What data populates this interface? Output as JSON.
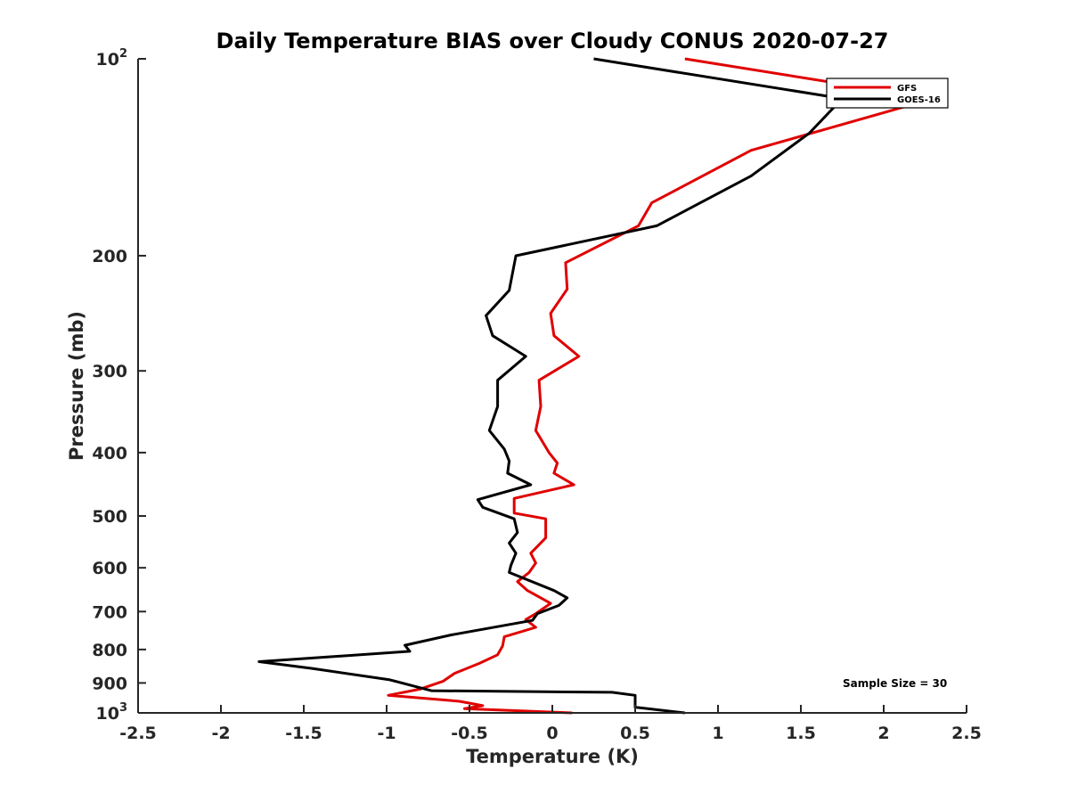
{
  "chart_data": {
    "type": "line",
    "title": "Daily Temperature BIAS over Cloudy CONUS 2020-07-27",
    "xlabel": "Temperature (K)",
    "ylabel": "Pressure (mb)",
    "xlim": [
      -2.5,
      2.5
    ],
    "ylim": [
      100,
      1000
    ],
    "y_scale": "log",
    "y_reversed": true,
    "grid": false,
    "legend_position": "top-right",
    "x_ticks": [
      "-2.5",
      "-2",
      "-1.5",
      "-1",
      "-0.5",
      "0",
      "0.5",
      "1",
      "1.5",
      "2",
      "2.5"
    ],
    "x_tick_values": [
      -2.5,
      -2,
      -1.5,
      -1,
      -0.5,
      0,
      0.5,
      1,
      1.5,
      2,
      2.5
    ],
    "y_ticks": [
      {
        "value": 100,
        "base": "10",
        "exp": "2"
      },
      {
        "value": 200,
        "label": "200"
      },
      {
        "value": 300,
        "label": "300"
      },
      {
        "value": 400,
        "label": "400"
      },
      {
        "value": 500,
        "label": "500"
      },
      {
        "value": 600,
        "label": "600"
      },
      {
        "value": 700,
        "label": "700"
      },
      {
        "value": 800,
        "label": "800"
      },
      {
        "value": 900,
        "label": "900"
      },
      {
        "value": 1000,
        "base": "10",
        "exp": "3"
      }
    ],
    "annotation": "Sample Size = 30",
    "series": [
      {
        "name": "GFS",
        "color": "#e00000",
        "points": [
          [
            0.8,
            100
          ],
          [
            2.3,
            115
          ],
          [
            1.2,
            138
          ],
          [
            0.6,
            166
          ],
          [
            0.52,
            180
          ],
          [
            0.08,
            205
          ],
          [
            0.09,
            225
          ],
          [
            -0.01,
            245
          ],
          [
            0.01,
            265
          ],
          [
            0.16,
            285
          ],
          [
            -0.08,
            310
          ],
          [
            -0.07,
            340
          ],
          [
            -0.1,
            370
          ],
          [
            -0.02,
            400
          ],
          [
            0.03,
            415
          ],
          [
            0.01,
            430
          ],
          [
            0.13,
            448
          ],
          [
            -0.23,
            470
          ],
          [
            -0.23,
            495
          ],
          [
            -0.04,
            505
          ],
          [
            -0.04,
            540
          ],
          [
            -0.13,
            570
          ],
          [
            -0.1,
            590
          ],
          [
            -0.14,
            610
          ],
          [
            -0.21,
            630
          ],
          [
            -0.15,
            650
          ],
          [
            -0.01,
            680
          ],
          [
            -0.1,
            705
          ],
          [
            -0.16,
            720
          ],
          [
            -0.1,
            740
          ],
          [
            -0.29,
            765
          ],
          [
            -0.3,
            790
          ],
          [
            -0.33,
            815
          ],
          [
            -0.44,
            840
          ],
          [
            -0.59,
            870
          ],
          [
            -0.66,
            895
          ],
          [
            -0.8,
            920
          ],
          [
            -0.99,
            940
          ],
          [
            -0.56,
            960
          ],
          [
            -0.42,
            975
          ],
          [
            -0.53,
            985
          ],
          [
            0.12,
            1000
          ]
        ]
      },
      {
        "name": "GOES-16",
        "color": "#000000",
        "points": [
          [
            0.25,
            100
          ],
          [
            1.75,
            115
          ],
          [
            1.55,
            130
          ],
          [
            1.2,
            151
          ],
          [
            0.63,
            180
          ],
          [
            -0.22,
            200
          ],
          [
            -0.26,
            226
          ],
          [
            -0.4,
            247
          ],
          [
            -0.36,
            265
          ],
          [
            -0.16,
            285
          ],
          [
            -0.33,
            310
          ],
          [
            -0.33,
            340
          ],
          [
            -0.38,
            370
          ],
          [
            -0.29,
            395
          ],
          [
            -0.26,
            412
          ],
          [
            -0.27,
            430
          ],
          [
            -0.13,
            448
          ],
          [
            -0.45,
            472
          ],
          [
            -0.42,
            485
          ],
          [
            -0.23,
            505
          ],
          [
            -0.21,
            530
          ],
          [
            -0.26,
            550
          ],
          [
            -0.22,
            570
          ],
          [
            -0.25,
            595
          ],
          [
            -0.26,
            610
          ],
          [
            0.01,
            650
          ],
          [
            0.09,
            667
          ],
          [
            0.04,
            685
          ],
          [
            -0.09,
            705
          ],
          [
            -0.12,
            722
          ],
          [
            -0.61,
            760
          ],
          [
            -0.89,
            788
          ],
          [
            -0.86,
            805
          ],
          [
            -1.77,
            835
          ],
          [
            -1.45,
            855
          ],
          [
            -0.98,
            890
          ],
          [
            -0.73,
            925
          ],
          [
            0.36,
            930
          ],
          [
            0.5,
            940
          ],
          [
            0.5,
            980
          ],
          [
            0.8,
            1000
          ]
        ]
      }
    ]
  }
}
